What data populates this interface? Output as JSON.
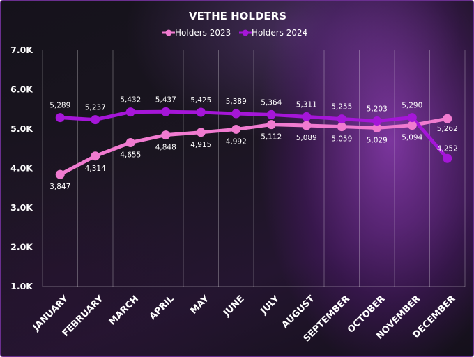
{
  "chart_data": {
    "type": "line",
    "title": "VETHE HOLDERS",
    "categories": [
      "JANUARY",
      "FEBRUARY",
      "MARCH",
      "APRIL",
      "MAY",
      "JUNE",
      "JULY",
      "AUGUST",
      "SEPTEMBER",
      "OCTOBER",
      "NOVEMBER",
      "DECEMBER"
    ],
    "series": [
      {
        "name": "Holders 2023",
        "color": "#f07bd0",
        "values": [
          3847,
          4314,
          4655,
          4848,
          4915,
          4992,
          5112,
          5089,
          5059,
          5029,
          5094,
          5262
        ],
        "labels": [
          "3,847",
          "4,314",
          "4,655",
          "4,848",
          "4,915",
          "4,992",
          "5,112",
          "5,089",
          "5,059",
          "5,029",
          "5,094",
          "5,262"
        ]
      },
      {
        "name": "Holders 2024",
        "color": "#a516d8",
        "values": [
          5289,
          5237,
          5432,
          5437,
          5425,
          5389,
          5364,
          5311,
          5255,
          5203,
          5290,
          4252
        ],
        "labels": [
          "5,289",
          "5,237",
          "5,432",
          "5,437",
          "5,425",
          "5,389",
          "5,364",
          "5,311",
          "5,255",
          "5,203",
          "5,290",
          "4,252"
        ]
      }
    ],
    "ylim": [
      1000,
      7000
    ],
    "yticks": [
      1000,
      2000,
      3000,
      4000,
      5000,
      6000,
      7000
    ],
    "ytick_labels": [
      "1.0K",
      "2.0K",
      "3.0K",
      "4.0K",
      "5.0K",
      "6.0K",
      "7.0K"
    ],
    "xlabel": "",
    "ylabel": "",
    "legend_position": "top-center",
    "grid": "vertical"
  }
}
